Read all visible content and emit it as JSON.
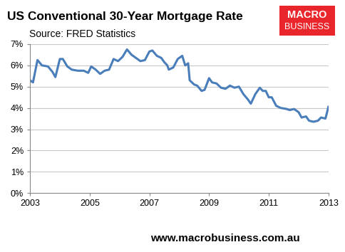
{
  "chart_data": {
    "type": "line",
    "title": "US Conventional 30-Year Mortgage Rate",
    "subtitle": "Source: FRED Statistics",
    "annotations": [
      "MACRO",
      "BUSINESS",
      "www.macrobusiness.com.au"
    ],
    "x": [
      2003.0,
      2003.1,
      2003.25,
      2003.4,
      2003.6,
      2003.75,
      2003.85,
      2004.0,
      2004.1,
      2004.25,
      2004.4,
      2004.6,
      2004.8,
      2004.95,
      2005.05,
      2005.2,
      2005.35,
      2005.5,
      2005.65,
      2005.8,
      2005.95,
      2006.1,
      2006.25,
      2006.4,
      2006.55,
      2006.7,
      2006.85,
      2007.0,
      2007.1,
      2007.25,
      2007.4,
      2007.5,
      2007.6,
      2007.65,
      2007.8,
      2007.95,
      2008.1,
      2008.2,
      2008.3,
      2008.35,
      2008.5,
      2008.6,
      2008.75,
      2008.85,
      2009.0,
      2009.1,
      2009.25,
      2009.4,
      2009.55,
      2009.7,
      2009.85,
      2010.0,
      2010.15,
      2010.3,
      2010.4,
      2010.55,
      2010.7,
      2010.8,
      2010.9,
      2011.0,
      2011.1,
      2011.25,
      2011.4,
      2011.6,
      2011.7,
      2011.85,
      2012.0,
      2012.1,
      2012.25,
      2012.35,
      2012.5,
      2012.65,
      2012.75,
      2012.9,
      2013.0
    ],
    "series": [
      {
        "name": "US Conventional 30-Year Mortgage Rate",
        "color": "#4a7ebb",
        "values": [
          5.3,
          5.2,
          6.25,
          6.0,
          5.95,
          5.7,
          5.45,
          6.3,
          6.3,
          5.95,
          5.8,
          5.75,
          5.75,
          5.65,
          5.95,
          5.8,
          5.6,
          5.75,
          5.8,
          6.3,
          6.2,
          6.4,
          6.75,
          6.5,
          6.35,
          6.2,
          6.25,
          6.65,
          6.7,
          6.45,
          6.35,
          6.15,
          6.0,
          5.8,
          5.9,
          6.3,
          6.45,
          6.0,
          6.1,
          5.3,
          5.1,
          5.05,
          4.8,
          4.85,
          5.4,
          5.2,
          5.15,
          4.95,
          4.9,
          5.05,
          4.95,
          5.0,
          4.65,
          4.4,
          4.2,
          4.65,
          4.95,
          4.8,
          4.8,
          4.5,
          4.5,
          4.1,
          4.0,
          3.95,
          3.9,
          3.95,
          3.8,
          3.55,
          3.6,
          3.4,
          3.35,
          3.4,
          3.55,
          3.5,
          4.05
        ]
      }
    ],
    "xlim": [
      2003,
      2013
    ],
    "xticks": [
      2003,
      2005,
      2007,
      2009,
      2011,
      2013
    ],
    "ylim": [
      0,
      7
    ],
    "yticks": [
      {
        "value": 0,
        "label": "0%"
      },
      {
        "value": 1,
        "label": "1%"
      },
      {
        "value": 2,
        "label": "2%"
      },
      {
        "value": 3,
        "label": "3%"
      },
      {
        "value": 4,
        "label": "4%"
      },
      {
        "value": 5,
        "label": "5%"
      },
      {
        "value": 6,
        "label": "6%"
      },
      {
        "value": 7,
        "label": "7%"
      }
    ],
    "grid": true
  }
}
